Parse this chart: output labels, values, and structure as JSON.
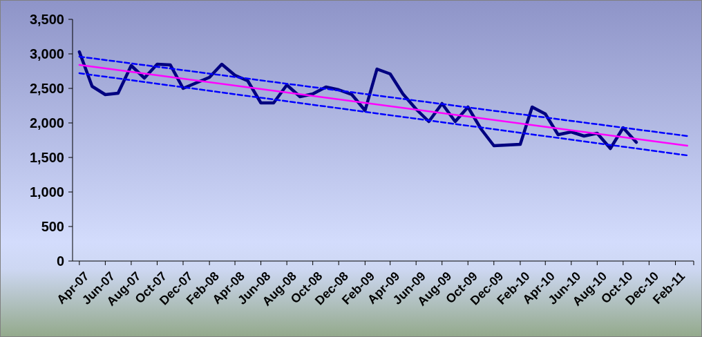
{
  "chart_data": {
    "type": "line",
    "x": [
      "2007-04",
      "2007-05",
      "2007-06",
      "2007-07",
      "2007-08",
      "2007-09",
      "2007-10",
      "2007-11",
      "2007-12",
      "2008-01",
      "2008-02",
      "2008-03",
      "2008-04",
      "2008-05",
      "2008-06",
      "2008-07",
      "2008-08",
      "2008-09",
      "2008-10",
      "2008-11",
      "2008-12",
      "2009-01",
      "2009-02",
      "2009-03",
      "2009-04",
      "2009-05",
      "2009-06",
      "2009-07",
      "2009-08",
      "2009-09",
      "2009-10",
      "2009-11",
      "2009-12",
      "2010-01",
      "2010-02",
      "2010-03",
      "2010-04",
      "2010-05",
      "2010-06",
      "2010-07",
      "2010-08",
      "2010-09",
      "2010-10",
      "2010-11"
    ],
    "series": [
      {
        "color": "#000080",
        "line_style": "solid",
        "values": [
          3030,
          2530,
          2410,
          2430,
          2830,
          2650,
          2850,
          2840,
          2500,
          2580,
          2660,
          2850,
          2690,
          2610,
          2290,
          2290,
          2550,
          2380,
          2420,
          2520,
          2480,
          2410,
          2180,
          2780,
          2710,
          2420,
          2200,
          2020,
          2280,
          2020,
          2230,
          1910,
          1670,
          1680,
          1690,
          2230,
          2130,
          1830,
          1870,
          1810,
          1850,
          1630,
          1930,
          1720
        ]
      },
      {
        "color": "#ff00ff",
        "line_style": "solid",
        "x": [
          "2007-04",
          "2011-03"
        ],
        "values": [
          2840,
          1670
        ]
      },
      {
        "color": "#0000ff",
        "line_style": "dashed",
        "x": [
          "2007-04",
          "2011-03"
        ],
        "values": [
          2960,
          1810
        ]
      },
      {
        "color": "#0000ff",
        "line_style": "dashed",
        "x": [
          "2007-04",
          "2011-03"
        ],
        "values": [
          2720,
          1530
        ]
      }
    ],
    "xlim": [
      "2007-03-16",
      "2011-03-16"
    ],
    "xticks": [
      {
        "value": "2007-04",
        "label": "Apr-07"
      },
      {
        "value": "2007-06",
        "label": "Jun-07"
      },
      {
        "value": "2007-08",
        "label": "Aug-07"
      },
      {
        "value": "2007-10",
        "label": "Oct-07"
      },
      {
        "value": "2007-12",
        "label": "Dec-07"
      },
      {
        "value": "2008-02",
        "label": "Feb-08"
      },
      {
        "value": "2008-04",
        "label": "Apr-08"
      },
      {
        "value": "2008-06",
        "label": "Jun-08"
      },
      {
        "value": "2008-08",
        "label": "Aug-08"
      },
      {
        "value": "2008-10",
        "label": "Oct-08"
      },
      {
        "value": "2008-12",
        "label": "Dec-08"
      },
      {
        "value": "2009-02",
        "label": "Feb-09"
      },
      {
        "value": "2009-04",
        "label": "Apr-09"
      },
      {
        "value": "2009-06",
        "label": "Jun-09"
      },
      {
        "value": "2009-08",
        "label": "Aug-09"
      },
      {
        "value": "2009-10",
        "label": "Oct-09"
      },
      {
        "value": "2009-12",
        "label": "Dec-09"
      },
      {
        "value": "2010-02",
        "label": "Feb-10"
      },
      {
        "value": "2010-04",
        "label": "Apr-10"
      },
      {
        "value": "2010-06",
        "label": "Jun-10"
      },
      {
        "value": "2010-08",
        "label": "Aug-10"
      },
      {
        "value": "2010-10",
        "label": "Oct-10"
      },
      {
        "value": "2010-12",
        "label": "Dec-10"
      },
      {
        "value": "2011-02",
        "label": "Feb-11"
      }
    ],
    "ylim": [
      0,
      3500
    ],
    "yticks": [
      0,
      500,
      {
        "value": 1000,
        "label": "1,000"
      },
      {
        "value": 1500,
        "label": "1,500"
      },
      {
        "value": 2000,
        "label": "2,000"
      },
      {
        "value": 2500,
        "label": "2,500"
      },
      {
        "value": 3000,
        "label": "3,000"
      },
      {
        "value": 3500,
        "label": "3,500"
      }
    ],
    "grid": false,
    "marker": "none"
  }
}
